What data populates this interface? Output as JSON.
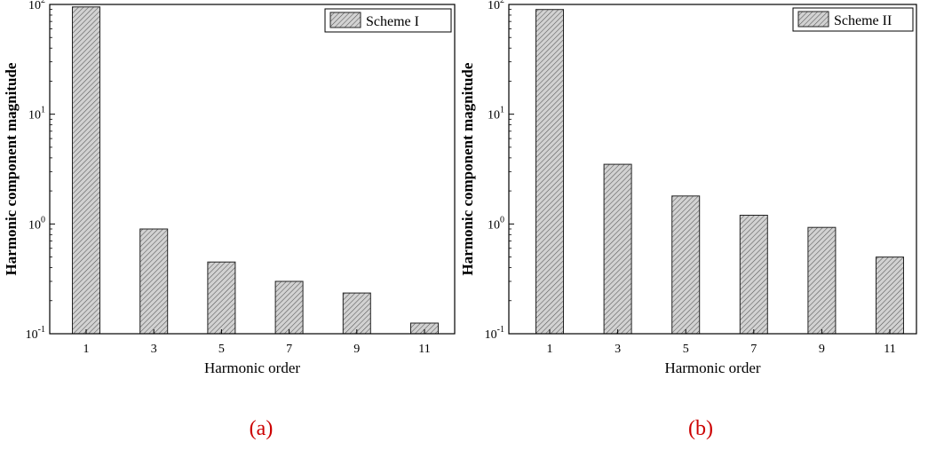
{
  "chart_data": [
    {
      "type": "bar",
      "panel_label": "(a)",
      "categories": [
        "1",
        "3",
        "5",
        "7",
        "9",
        "11"
      ],
      "series": [
        {
          "name": "Scheme I",
          "values": [
            95,
            0.9,
            0.45,
            0.3,
            0.235,
            0.125
          ]
        }
      ],
      "xlabel": "Harmonic order",
      "ylabel": "Harmonic component magnitude",
      "yscale": "log",
      "ylim": [
        0.1,
        100
      ],
      "yticks": [
        {
          "value": 100,
          "base": "10",
          "exp": "2"
        },
        {
          "value": 10,
          "base": "10",
          "exp": "1"
        },
        {
          "value": 1,
          "base": "10",
          "exp": "0"
        },
        {
          "value": 0.1,
          "base": "10",
          "exp": "-1"
        }
      ],
      "grid": false,
      "legend_position": "top-right",
      "bar_fill": "#d2d2d2",
      "hatch_color": "#555555",
      "label_color": "#cc0000"
    },
    {
      "type": "bar",
      "panel_label": "(b)",
      "categories": [
        "1",
        "3",
        "5",
        "7",
        "9",
        "11"
      ],
      "series": [
        {
          "name": "Scheme II",
          "values": [
            90,
            3.5,
            1.8,
            1.2,
            0.93,
            0.5
          ]
        }
      ],
      "xlabel": "Harmonic order",
      "ylabel": "Harmonic component magnitude",
      "yscale": "log",
      "ylim": [
        0.1,
        100
      ],
      "yticks": [
        {
          "value": 100,
          "base": "10",
          "exp": "2"
        },
        {
          "value": 10,
          "base": "10",
          "exp": "1"
        },
        {
          "value": 1,
          "base": "10",
          "exp": "0"
        },
        {
          "value": 0.1,
          "base": "10",
          "exp": "-1"
        }
      ],
      "grid": false,
      "legend_position": "top-right",
      "bar_fill": "#d2d2d2",
      "hatch_color": "#555555",
      "label_color": "#cc0000"
    }
  ]
}
